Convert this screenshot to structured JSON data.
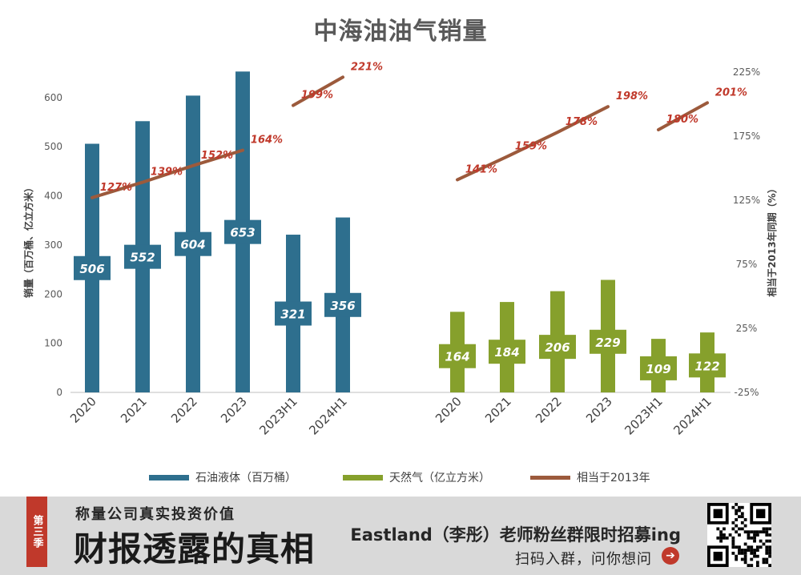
{
  "title": "中海油油气销量",
  "chart_data": {
    "type": "bar",
    "left_axis": {
      "label": "销量（百万桶、亿立方米）",
      "range": [
        0,
        650
      ],
      "ticks": [
        "0",
        "100",
        "200",
        "300",
        "400",
        "500",
        "600"
      ]
    },
    "right_axis": {
      "label": "相当于2013年同期（%）",
      "range": [
        -25,
        225
      ],
      "ticks": [
        "-25%",
        "25%",
        "75%",
        "125%",
        "175%",
        "225%"
      ]
    },
    "groups": [
      {
        "categories": [
          "2020",
          "2021",
          "2022",
          "2023",
          "2023H1",
          "2024H1"
        ],
        "bar_series": {
          "name": "石油液体（百万桶）",
          "color": "#2e6f8e",
          "values": [
            506,
            552,
            604,
            653,
            321,
            356
          ],
          "labels": [
            "506",
            "552",
            "604",
            "653",
            "321",
            "356"
          ]
        },
        "line_segments": [
          {
            "categories": [
              "2020",
              "2021",
              "2022",
              "2023"
            ],
            "values": [
              127,
              139,
              152,
              164
            ],
            "labels": [
              "127%",
              "139%",
              "152%",
              "164%"
            ]
          },
          {
            "categories": [
              "2023H1",
              "2024H1"
            ],
            "values": [
              199,
              221
            ],
            "labels": [
              "199%",
              "221%"
            ]
          }
        ]
      },
      {
        "categories": [
          "2020",
          "2021",
          "2022",
          "2023",
          "2023H1",
          "2024H1"
        ],
        "bar_series": {
          "name": "天然气（亿立方米）",
          "color": "#86a02c",
          "values": [
            164,
            184,
            206,
            229,
            109,
            122
          ],
          "labels": [
            "164",
            "184",
            "206",
            "229",
            "109",
            "122"
          ]
        },
        "line_segments": [
          {
            "categories": [
              "2020",
              "2021",
              "2022",
              "2023"
            ],
            "values": [
              141,
              159,
              178,
              198
            ],
            "labels": [
              "141%",
              "159%",
              "178%",
              "198%"
            ]
          },
          {
            "categories": [
              "2023H1",
              "2024H1"
            ],
            "values": [
              180,
              201
            ],
            "labels": [
              "180%",
              "201%"
            ]
          }
        ]
      }
    ],
    "line_series": {
      "name": "相当于2013年",
      "color": "#9c5a3c"
    },
    "legend_position": "bottom",
    "grid": false
  },
  "legend": [
    "石油液体（百万桶）",
    "天然气（亿立方米）",
    "相当于2013年"
  ],
  "colors": {
    "oil": "#2e6f8e",
    "gas": "#86a02c",
    "ratio_line": "#9c5a3c",
    "ratio_label": "#c0392b",
    "banner_bg": "#d9d9d9",
    "accent": "#c0392b"
  },
  "banner": {
    "ribbon": "第三季",
    "subtitle": "称量公司真实投资价值",
    "main": "财报透露的真相",
    "recruit": "Eastland（李彤）老师粉丝群限时招募ing",
    "scan": "扫码入群，问你想问",
    "arrow_icon": "arrow-right-icon"
  }
}
